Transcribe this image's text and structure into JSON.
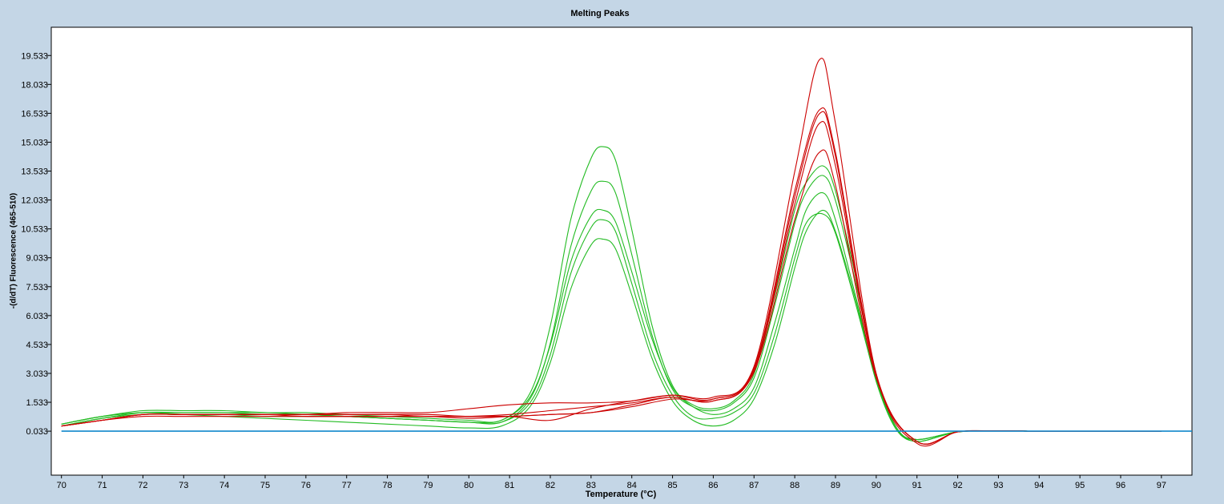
{
  "chart_data": {
    "type": "line",
    "title": "Melting Peaks",
    "xlabel": "Temperature (°C)",
    "ylabel": "-(d/dT) Fluorescence (465-510)",
    "xlim": [
      69.75,
      97.75
    ],
    "ylim": [
      -2.25,
      21.0
    ],
    "x_ticks": [
      "70",
      "71",
      "72",
      "73",
      "74",
      "75",
      "76",
      "77",
      "78",
      "79",
      "80",
      "81",
      "82",
      "83",
      "84",
      "85",
      "86",
      "87",
      "88",
      "89",
      "90",
      "91",
      "92",
      "93",
      "94",
      "95",
      "96",
      "97"
    ],
    "y_ticks": [
      "0.033",
      "1.533",
      "3.033",
      "4.533",
      "6.033",
      "7.533",
      "9.033",
      "10.533",
      "12.033",
      "13.533",
      "15.033",
      "16.533",
      "18.033",
      "19.533"
    ],
    "grid": false,
    "legend": "none",
    "colors": {
      "red": "#cc0000",
      "green": "#22bb22",
      "blue": "#1188cc"
    },
    "series": [
      {
        "color": "red",
        "x": [
          70,
          71,
          72,
          73,
          74,
          75,
          76,
          77,
          78,
          79,
          80,
          81,
          82,
          83,
          84,
          85,
          86,
          87,
          88,
          88.6,
          89,
          90,
          91,
          92,
          93,
          94,
          95,
          96,
          97
        ],
        "y": [
          0.3,
          0.6,
          0.9,
          0.9,
          0.9,
          0.9,
          0.9,
          1.0,
          1.0,
          1.0,
          1.2,
          1.4,
          1.5,
          1.5,
          1.6,
          1.9,
          1.8,
          3.4,
          13.5,
          19.3,
          16.0,
          3.0,
          -0.6,
          0.0,
          0.05,
          0.03,
          0.03,
          0.03,
          0.03
        ]
      },
      {
        "color": "red",
        "x": [
          70,
          71,
          72,
          73,
          74,
          75,
          76,
          77,
          78,
          79,
          80,
          81,
          82,
          83,
          84,
          85,
          86,
          87,
          88,
          88.6,
          89,
          90,
          91,
          92,
          93,
          94,
          95,
          96,
          97
        ],
        "y": [
          0.3,
          0.6,
          0.9,
          0.9,
          0.9,
          0.9,
          0.9,
          0.9,
          0.9,
          0.9,
          0.8,
          0.8,
          0.6,
          1.2,
          1.6,
          1.9,
          1.7,
          3.3,
          12.5,
          16.7,
          14.5,
          3.0,
          -0.5,
          0.0,
          0.05,
          0.03,
          0.03,
          0.03,
          0.03
        ]
      },
      {
        "color": "red",
        "x": [
          70,
          71,
          72,
          73,
          74,
          75,
          76,
          77,
          78,
          79,
          80,
          81,
          82,
          83,
          84,
          85,
          86,
          87,
          88,
          88.6,
          89,
          90,
          91,
          92,
          93,
          94,
          95,
          96,
          97
        ],
        "y": [
          0.3,
          0.6,
          0.9,
          0.9,
          0.9,
          0.9,
          0.8,
          0.8,
          0.8,
          0.8,
          0.7,
          0.8,
          0.9,
          1.0,
          1.4,
          1.8,
          1.6,
          3.2,
          12.2,
          16.5,
          14.3,
          2.9,
          -0.5,
          0.0,
          0.05,
          0.03,
          0.03,
          0.03,
          0.03
        ]
      },
      {
        "color": "red",
        "x": [
          70,
          71,
          72,
          73,
          74,
          75,
          76,
          77,
          78,
          79,
          80,
          81,
          82,
          83,
          84,
          85,
          86,
          87,
          88,
          88.6,
          89,
          90,
          91,
          92,
          93,
          94,
          95,
          96,
          97
        ],
        "y": [
          0.3,
          0.6,
          0.8,
          0.8,
          0.8,
          0.8,
          0.8,
          0.8,
          0.8,
          0.8,
          0.8,
          0.9,
          1.1,
          1.3,
          1.5,
          1.8,
          1.6,
          3.1,
          11.0,
          14.5,
          12.8,
          2.8,
          -0.5,
          0.0,
          0.05,
          0.03,
          0.03,
          0.03,
          0.03
        ]
      },
      {
        "color": "red",
        "x": [
          70,
          71,
          72,
          73,
          74,
          75,
          76,
          77,
          78,
          79,
          80,
          81,
          82,
          83,
          84,
          85,
          86,
          87,
          88,
          88.6,
          89,
          90,
          91,
          92,
          93,
          94,
          95,
          96,
          97
        ],
        "y": [
          0.3,
          0.6,
          0.9,
          0.9,
          0.9,
          0.9,
          0.9,
          0.9,
          0.9,
          0.8,
          0.8,
          0.8,
          0.9,
          1.0,
          1.3,
          1.7,
          1.7,
          3.2,
          11.8,
          16.0,
          13.8,
          2.9,
          -0.5,
          0.0,
          0.05,
          0.03,
          0.03,
          0.03,
          0.03
        ]
      },
      {
        "color": "green",
        "x": [
          70,
          71,
          72,
          73,
          74,
          75,
          76,
          77,
          78,
          79,
          80,
          80.8,
          81.5,
          82,
          82.5,
          83,
          83.3,
          83.6,
          84,
          84.5,
          85,
          85.5,
          86,
          86.5,
          87,
          87.5,
          88,
          88.3,
          88.7,
          89,
          89.5,
          90,
          90.5,
          91,
          92,
          93,
          94,
          95,
          96,
          97
        ],
        "y": [
          0.4,
          0.8,
          1.1,
          1.1,
          1.1,
          1.0,
          1.0,
          0.9,
          0.8,
          0.7,
          0.6,
          0.6,
          2.0,
          5.5,
          11.0,
          14.2,
          14.8,
          14.1,
          10.5,
          5.5,
          2.4,
          1.4,
          1.2,
          1.6,
          3.0,
          7.0,
          11.5,
          13.0,
          13.8,
          12.5,
          8.0,
          3.0,
          0.2,
          -0.5,
          0.0,
          0.05,
          0.03,
          0.03,
          0.03,
          0.03
        ]
      },
      {
        "color": "green",
        "x": [
          70,
          71,
          72,
          73,
          74,
          75,
          76,
          77,
          78,
          79,
          80,
          80.8,
          81.5,
          82,
          82.5,
          83,
          83.3,
          83.6,
          84,
          84.5,
          85,
          85.5,
          86,
          86.5,
          87,
          87.5,
          88,
          88.3,
          88.7,
          89,
          89.5,
          90,
          90.5,
          91,
          92,
          93,
          94,
          95,
          96,
          97
        ],
        "y": [
          0.4,
          0.8,
          1.0,
          1.0,
          1.0,
          1.0,
          0.9,
          0.8,
          0.7,
          0.6,
          0.5,
          0.5,
          1.7,
          4.6,
          9.6,
          12.5,
          13.0,
          12.4,
          9.2,
          5.0,
          2.2,
          1.3,
          1.1,
          1.5,
          2.8,
          6.5,
          10.8,
          12.5,
          13.3,
          12.0,
          7.7,
          2.9,
          0.2,
          -0.5,
          0.0,
          0.05,
          0.03,
          0.03,
          0.03,
          0.03
        ]
      },
      {
        "color": "green",
        "x": [
          70,
          71,
          72,
          73,
          74,
          75,
          76,
          77,
          78,
          79,
          80,
          80.8,
          81.5,
          82,
          82.5,
          83,
          83.3,
          83.6,
          84,
          84.5,
          85,
          85.5,
          86,
          86.5,
          87,
          87.5,
          88,
          88.3,
          88.7,
          89,
          89.5,
          90,
          90.5,
          91,
          92,
          93,
          94,
          95,
          96,
          97
        ],
        "y": [
          0.3,
          0.7,
          1.0,
          1.0,
          1.0,
          0.9,
          0.9,
          0.8,
          0.7,
          0.6,
          0.5,
          0.6,
          1.8,
          4.5,
          8.8,
          11.2,
          11.5,
          10.9,
          8.3,
          4.8,
          2.3,
          1.3,
          0.9,
          1.2,
          2.3,
          5.6,
          9.5,
          11.6,
          12.4,
          11.0,
          7.0,
          2.8,
          0.2,
          -0.4,
          0.0,
          0.05,
          0.03,
          0.03,
          0.03,
          0.03
        ]
      },
      {
        "color": "green",
        "x": [
          70,
          71,
          72,
          73,
          74,
          75,
          76,
          77,
          78,
          79,
          80,
          80.8,
          81.5,
          82,
          82.5,
          83,
          83.3,
          83.6,
          84,
          84.5,
          85,
          85.5,
          86,
          86.5,
          87,
          87.5,
          88,
          88.3,
          88.7,
          89,
          89.5,
          90,
          90.5,
          91,
          92,
          93,
          94,
          95,
          96,
          97
        ],
        "y": [
          0.3,
          0.7,
          0.9,
          0.9,
          0.9,
          0.8,
          0.8,
          0.8,
          0.7,
          0.6,
          0.5,
          0.5,
          1.5,
          4.0,
          8.2,
          10.6,
          11.0,
          10.4,
          7.7,
          4.2,
          1.9,
          0.8,
          0.7,
          1.0,
          2.0,
          5.0,
          9.0,
          10.9,
          11.3,
          10.3,
          6.6,
          2.7,
          0.1,
          -0.4,
          0.0,
          0.05,
          0.03,
          0.03,
          0.03,
          0.03
        ]
      },
      {
        "color": "green",
        "x": [
          70,
          71,
          72,
          73,
          74,
          75,
          76,
          77,
          78,
          79,
          80,
          80.8,
          81.5,
          82,
          82.5,
          83,
          83.3,
          83.6,
          84,
          84.5,
          85,
          85.5,
          86,
          86.5,
          87,
          87.5,
          88,
          88.3,
          88.7,
          89,
          89.5,
          90,
          90.5,
          91,
          92,
          93,
          94,
          95,
          96,
          97
        ],
        "y": [
          0.4,
          0.8,
          1.0,
          0.9,
          0.8,
          0.7,
          0.6,
          0.5,
          0.4,
          0.3,
          0.2,
          0.3,
          1.3,
          3.6,
          7.4,
          9.7,
          10.0,
          9.5,
          7.1,
          3.8,
          1.6,
          0.6,
          0.3,
          0.6,
          1.7,
          4.5,
          8.5,
          10.5,
          11.5,
          10.4,
          6.8,
          2.6,
          0.1,
          -0.4,
          0.0,
          0.05,
          0.03,
          0.03,
          0.03,
          0.03
        ]
      },
      {
        "color": "blue",
        "x": [
          70,
          97.75
        ],
        "y": [
          0.033,
          0.033
        ]
      }
    ]
  }
}
